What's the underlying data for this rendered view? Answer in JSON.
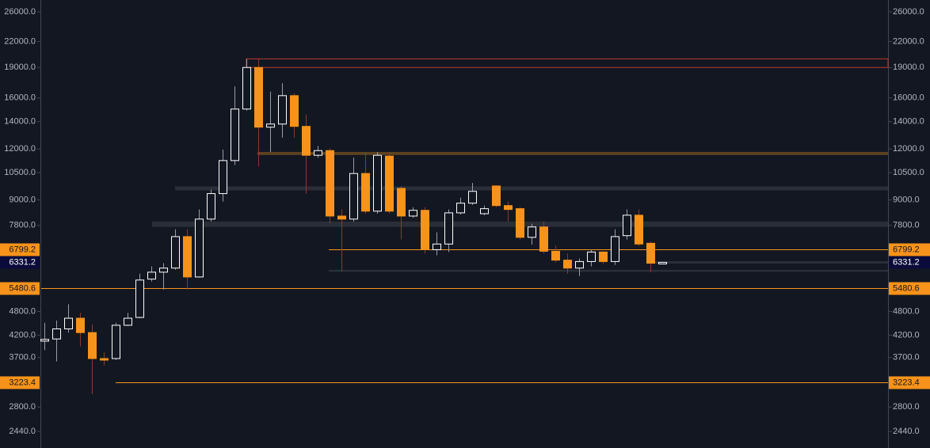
{
  "chart_data": {
    "type": "candlestick",
    "log_scale": true,
    "ylim": [
      2222,
      27800
    ],
    "yticks": [
      {
        "value": 26000,
        "label": "26000.0"
      },
      {
        "value": 22000,
        "label": "22000.0"
      },
      {
        "value": 19000,
        "label": "19000.0"
      },
      {
        "value": 16000,
        "label": "16000.0"
      },
      {
        "value": 14000,
        "label": "14000.0"
      },
      {
        "value": 12000,
        "label": "12000.0"
      },
      {
        "value": 10500,
        "label": "10500.0"
      },
      {
        "value": 9000,
        "label": "9000.0"
      },
      {
        "value": 7800,
        "label": "7800.0"
      },
      {
        "value": 4800,
        "label": "4800.0"
      },
      {
        "value": 4200,
        "label": "4200.0"
      },
      {
        "value": 3700,
        "label": "3700.0"
      },
      {
        "value": 2800,
        "label": "2800.0"
      },
      {
        "value": 2440,
        "label": "2440.0"
      }
    ],
    "open": [
      4060,
      4110,
      4350,
      4620,
      4260,
      3680,
      3680,
      4440,
      4640,
      5760,
      5990,
      6130,
      7320,
      5830,
      8080,
      9330,
      11240,
      15030,
      19000,
      13570,
      13810,
      16210,
      13630,
      11580,
      11890,
      8220,
      8080,
      10450,
      8450,
      11530,
      9610,
      8220,
      8490,
      6800,
      7020,
      8370,
      8840,
      8330,
      9740,
      8720,
      8570,
      7290,
      7730,
      6740,
      6410,
      6130,
      6360,
      6710,
      6360,
      7360,
      8260,
      7050,
      6331.2
    ],
    "high": [
      4500,
      4560,
      5000,
      4760,
      4460,
      3810,
      4500,
      4760,
      5940,
      6190,
      6300,
      7630,
      7630,
      8530,
      9540,
      11950,
      17070,
      19950,
      19950,
      16580,
      17390,
      16430,
      14570,
      12210,
      12050,
      8530,
      11430,
      11790,
      11790,
      11790,
      9740,
      8640,
      8640,
      7500,
      8530,
      9120,
      9910,
      8720,
      9780,
      8920,
      8640,
      7870,
      7970,
      6950,
      6650,
      6470,
      6800,
      6740,
      7630,
      8530,
      8530,
      7110,
      6331.2
    ],
    "low": [
      3860,
      3620,
      4260,
      3940,
      3010,
      3540,
      3650,
      4420,
      4620,
      5680,
      5430,
      6070,
      5430,
      5810,
      7970,
      8920,
      10960,
      14900,
      10870,
      11790,
      12790,
      12790,
      9330,
      11430,
      7900,
      6020,
      7970,
      8330,
      8330,
      8330,
      7200,
      8140,
      6650,
      6590,
      6710,
      8290,
      8760,
      8260,
      8640,
      7970,
      7200,
      7000,
      6650,
      6330,
      5940,
      5860,
      6190,
      6270,
      6240,
      7200,
      6950,
      5990,
      6331.2
    ],
    "close": [
      4100,
      4350,
      4620,
      4260,
      3680,
      3670,
      4440,
      4620,
      5730,
      5990,
      6130,
      7320,
      5830,
      8080,
      9330,
      11240,
      15030,
      19000,
      13570,
      13810,
      16210,
      13630,
      11580,
      11890,
      8220,
      8080,
      10450,
      8450,
      11580,
      8450,
      8220,
      8490,
      6800,
      7020,
      8370,
      8840,
      9450,
      8570,
      8720,
      8530,
      7290,
      7730,
      6740,
      6410,
      6130,
      6360,
      6710,
      6360,
      7320,
      8260,
      7020,
      6300,
      6331.2
    ],
    "up_color": "#ffffff",
    "down_color": "#f7931a",
    "price_lines": [
      {
        "value": 6799.2,
        "color": "#f7931a",
        "label_color": "#f7931a"
      },
      {
        "value": 6331.2,
        "color": "#2a2e39",
        "label_color": "#0b0b3b"
      },
      {
        "value": 5480.6,
        "color": "#f7931a",
        "label_color": "#f7931a"
      },
      {
        "value": 3223.4,
        "color": "#f7931a",
        "label_color": "#f7931a"
      }
    ],
    "zones": [
      {
        "low": 19000,
        "high": 19950,
        "color": "#c0392b"
      },
      {
        "low": 11600,
        "high": 11800,
        "color": "#6b4a1f"
      },
      {
        "low": 9500,
        "high": 9720,
        "color": "#2e323c"
      },
      {
        "low": 7730,
        "high": 7970,
        "color": "#2e323c"
      },
      {
        "low": 6000,
        "high": 6070,
        "color": "#2e323c"
      }
    ]
  }
}
